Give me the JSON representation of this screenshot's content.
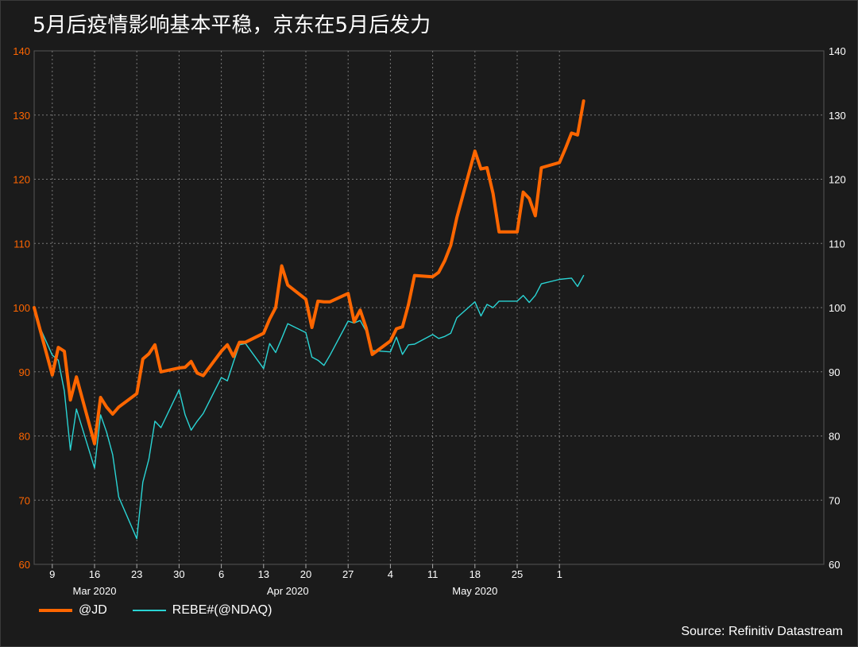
{
  "title": "5月后疫情影响基本平稳，京东在5月后发力",
  "source": "Source: Refinitiv Datastream",
  "colors": {
    "jd": "#ff6600",
    "rebe": "#2ad4d4",
    "leftAxis": "#ff6600",
    "rightAxis": "#ffffff",
    "grid": "#777777"
  },
  "chart_data": {
    "type": "line",
    "grid": true,
    "legend_position": "bottom-left",
    "ylim": [
      60,
      140
    ],
    "yticks": [
      60,
      70,
      80,
      90,
      100,
      110,
      120,
      130,
      140
    ],
    "x_range": [
      "2020-03-06",
      "2020-06-04"
    ],
    "x_ticks": [
      {
        "date": "2020-03-09",
        "label": "9"
      },
      {
        "date": "2020-03-16",
        "label": "16"
      },
      {
        "date": "2020-03-23",
        "label": "23"
      },
      {
        "date": "2020-03-30",
        "label": "30"
      },
      {
        "date": "2020-04-06",
        "label": "6"
      },
      {
        "date": "2020-04-13",
        "label": "13"
      },
      {
        "date": "2020-04-20",
        "label": "20"
      },
      {
        "date": "2020-04-27",
        "label": "27"
      },
      {
        "date": "2020-05-04",
        "label": "4"
      },
      {
        "date": "2020-05-11",
        "label": "11"
      },
      {
        "date": "2020-05-18",
        "label": "18"
      },
      {
        "date": "2020-05-25",
        "label": "25"
      },
      {
        "date": "2020-06-01",
        "label": "1"
      }
    ],
    "month_labels": [
      {
        "date": "2020-03-16",
        "label": "Mar 2020"
      },
      {
        "date": "2020-04-17",
        "label": "Apr 2020"
      },
      {
        "date": "2020-05-18",
        "label": "May 2020"
      }
    ],
    "series": [
      {
        "name": "@JD",
        "points": [
          [
            "2020-03-06",
            100
          ],
          [
            "2020-03-09",
            89.5
          ],
          [
            "2020-03-10",
            93.8
          ],
          [
            "2020-03-11",
            93.2
          ],
          [
            "2020-03-12",
            85.6
          ],
          [
            "2020-03-13",
            89.2
          ],
          [
            "2020-03-16",
            78.8
          ],
          [
            "2020-03-17",
            86.0
          ],
          [
            "2020-03-18",
            84.5
          ],
          [
            "2020-03-19",
            83.4
          ],
          [
            "2020-03-20",
            84.5
          ],
          [
            "2020-03-23",
            86.6
          ],
          [
            "2020-03-24",
            92.0
          ],
          [
            "2020-03-25",
            92.8
          ],
          [
            "2020-03-26",
            94.2
          ],
          [
            "2020-03-27",
            90.0
          ],
          [
            "2020-03-30",
            90.6
          ],
          [
            "2020-03-31",
            90.7
          ],
          [
            "2020-04-01",
            91.6
          ],
          [
            "2020-04-02",
            89.8
          ],
          [
            "2020-04-03",
            89.4
          ],
          [
            "2020-04-06",
            93.2
          ],
          [
            "2020-04-07",
            94.2
          ],
          [
            "2020-04-08",
            92.4
          ],
          [
            "2020-04-09",
            94.6
          ],
          [
            "2020-04-10",
            94.6
          ],
          [
            "2020-04-13",
            96.0
          ],
          [
            "2020-04-14",
            98.2
          ],
          [
            "2020-04-15",
            100.0
          ],
          [
            "2020-04-16",
            106.5
          ],
          [
            "2020-04-17",
            103.5
          ],
          [
            "2020-04-20",
            101.3
          ],
          [
            "2020-04-21",
            96.9
          ],
          [
            "2020-04-22",
            101.0
          ],
          [
            "2020-04-23",
            100.9
          ],
          [
            "2020-04-24",
            100.9
          ],
          [
            "2020-04-27",
            102.2
          ],
          [
            "2020-04-28",
            97.8
          ],
          [
            "2020-04-29",
            99.6
          ],
          [
            "2020-04-30",
            96.8
          ],
          [
            "2020-05-01",
            92.7
          ],
          [
            "2020-05-04",
            94.8
          ],
          [
            "2020-05-05",
            96.7
          ],
          [
            "2020-05-06",
            97.0
          ],
          [
            "2020-05-07",
            100.5
          ],
          [
            "2020-05-08",
            105.0
          ],
          [
            "2020-05-11",
            104.8
          ],
          [
            "2020-05-12",
            105.5
          ],
          [
            "2020-05-13",
            107.3
          ],
          [
            "2020-05-14",
            109.7
          ],
          [
            "2020-05-15",
            114.0
          ],
          [
            "2020-05-18",
            124.4
          ],
          [
            "2020-05-19",
            121.6
          ],
          [
            "2020-05-20",
            121.8
          ],
          [
            "2020-05-21",
            117.8
          ],
          [
            "2020-05-22",
            111.8
          ],
          [
            "2020-05-25",
            111.8
          ],
          [
            "2020-05-26",
            118.0
          ],
          [
            "2020-05-27",
            117.0
          ],
          [
            "2020-05-28",
            114.3
          ],
          [
            "2020-05-29",
            121.8
          ],
          [
            "2020-06-01",
            122.6
          ],
          [
            "2020-06-02",
            124.8
          ],
          [
            "2020-06-03",
            127.2
          ],
          [
            "2020-06-04",
            126.9
          ],
          [
            "2020-06-05",
            132.2
          ]
        ]
      },
      {
        "name": "REBE#(@NDAQ)",
        "points": [
          [
            "2020-03-06",
            100
          ],
          [
            "2020-03-07",
            96.8
          ],
          [
            "2020-03-09",
            92.6
          ],
          [
            "2020-03-10",
            91.8
          ],
          [
            "2020-03-11",
            87.0
          ],
          [
            "2020-03-12",
            77.8
          ],
          [
            "2020-03-13",
            84.2
          ],
          [
            "2020-03-16",
            75.0
          ],
          [
            "2020-03-17",
            83.3
          ],
          [
            "2020-03-18",
            80.6
          ],
          [
            "2020-03-19",
            77.1
          ],
          [
            "2020-03-20",
            70.5
          ],
          [
            "2020-03-23",
            64.0
          ],
          [
            "2020-03-24",
            72.8
          ],
          [
            "2020-03-25",
            76.4
          ],
          [
            "2020-03-26",
            82.3
          ],
          [
            "2020-03-27",
            81.3
          ],
          [
            "2020-03-30",
            87.2
          ],
          [
            "2020-03-31",
            83.3
          ],
          [
            "2020-04-01",
            80.9
          ],
          [
            "2020-04-02",
            82.3
          ],
          [
            "2020-04-03",
            83.5
          ],
          [
            "2020-04-06",
            89.1
          ],
          [
            "2020-04-07",
            88.6
          ],
          [
            "2020-04-08",
            91.5
          ],
          [
            "2020-04-09",
            94.2
          ],
          [
            "2020-04-10",
            94.4
          ],
          [
            "2020-04-13",
            90.5
          ],
          [
            "2020-04-14",
            94.4
          ],
          [
            "2020-04-15",
            93.0
          ],
          [
            "2020-04-16",
            95.2
          ],
          [
            "2020-04-17",
            97.5
          ],
          [
            "2020-04-20",
            96.1
          ],
          [
            "2020-04-21",
            92.3
          ],
          [
            "2020-04-22",
            91.8
          ],
          [
            "2020-04-23",
            91.0
          ],
          [
            "2020-04-24",
            92.6
          ],
          [
            "2020-04-27",
            97.9
          ],
          [
            "2020-04-28",
            97.6
          ],
          [
            "2020-04-29",
            98.0
          ],
          [
            "2020-04-30",
            96.3
          ],
          [
            "2020-05-01",
            93.3
          ],
          [
            "2020-05-04",
            93.1
          ],
          [
            "2020-05-05",
            95.4
          ],
          [
            "2020-05-06",
            92.7
          ],
          [
            "2020-05-07",
            94.2
          ],
          [
            "2020-05-08",
            94.3
          ],
          [
            "2020-05-11",
            95.8
          ],
          [
            "2020-05-12",
            95.2
          ],
          [
            "2020-05-13",
            95.5
          ],
          [
            "2020-05-14",
            96.0
          ],
          [
            "2020-05-15",
            98.4
          ],
          [
            "2020-05-18",
            100.9
          ],
          [
            "2020-05-19",
            98.7
          ],
          [
            "2020-05-20",
            100.5
          ],
          [
            "2020-05-21",
            100.0
          ],
          [
            "2020-05-22",
            101.0
          ],
          [
            "2020-05-25",
            101.0
          ],
          [
            "2020-05-26",
            101.9
          ],
          [
            "2020-05-27",
            100.8
          ],
          [
            "2020-05-28",
            101.9
          ],
          [
            "2020-05-29",
            103.7
          ],
          [
            "2020-06-01",
            104.4
          ],
          [
            "2020-06-02",
            104.5
          ],
          [
            "2020-06-03",
            104.6
          ],
          [
            "2020-06-04",
            103.3
          ],
          [
            "2020-06-05",
            105.0
          ]
        ]
      }
    ]
  }
}
